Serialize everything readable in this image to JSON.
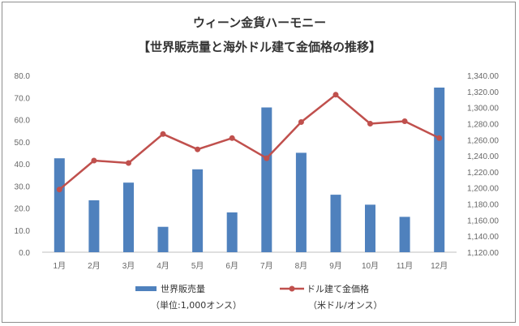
{
  "chart_data": {
    "type": "bar",
    "title": "ウィーン金貨ハーモニー",
    "subtitle": "【世界販売量と海外ドル建て金価格の推移】",
    "categories": [
      "1月",
      "2月",
      "3月",
      "4月",
      "5月",
      "6月",
      "7月",
      "8月",
      "9月",
      "10月",
      "11月",
      "12月"
    ],
    "series": [
      {
        "name": "世界販売量",
        "name_sub": "（単位:1,000オンス）",
        "type": "bar",
        "axis": "left",
        "color": "#4f81bd",
        "values": [
          42.5,
          23.5,
          31.5,
          11.5,
          37.5,
          18,
          65.5,
          45,
          26,
          21.5,
          16,
          74.5
        ]
      },
      {
        "name": "ドル建て金価格",
        "name_sub": "（米ドル/オンス）",
        "type": "line",
        "axis": "right",
        "color": "#c0504d",
        "values": [
          1198,
          1234,
          1231,
          1267,
          1248,
          1262,
          1237,
          1282,
          1316,
          1280,
          1283,
          1262
        ]
      }
    ],
    "y_left": {
      "lim": [
        0,
        80
      ],
      "ticks": [
        0,
        10,
        20,
        30,
        40,
        50,
        60,
        70,
        80
      ],
      "tick_labels": [
        "0.0",
        "10.0",
        "20.0",
        "30.0",
        "40.0",
        "50.0",
        "60.0",
        "70.0",
        "80.0"
      ]
    },
    "y_right": {
      "lim": [
        1120,
        1340
      ],
      "ticks": [
        1120,
        1140,
        1160,
        1180,
        1200,
        1220,
        1240,
        1260,
        1280,
        1300,
        1320,
        1340
      ],
      "tick_labels": [
        "1,120.00",
        "1,140.00",
        "1,160.00",
        "1,180.00",
        "1,200.00",
        "1,220.00",
        "1,240.00",
        "1,260.00",
        "1,280.00",
        "1,300.00",
        "1,320.00",
        "1,340.00"
      ]
    },
    "grid": false,
    "legend_position": "bottom"
  }
}
